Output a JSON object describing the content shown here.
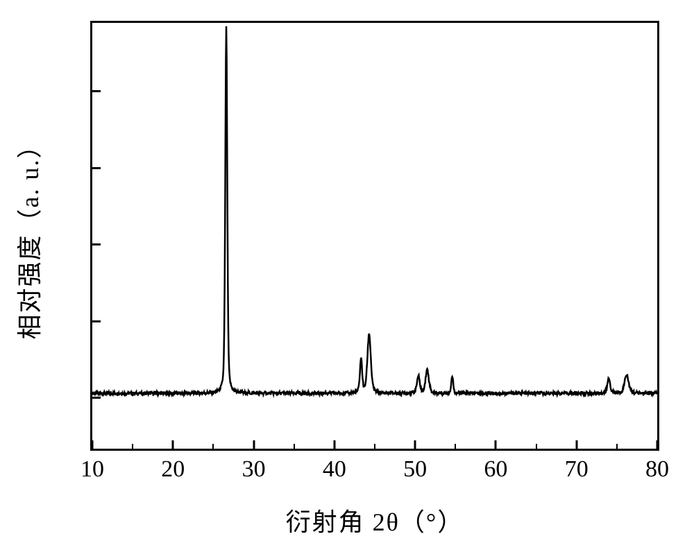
{
  "chart": {
    "type": "line",
    "xlabel": "衍射角 2θ（°）",
    "ylabel": "相对强度（a. u.）",
    "xlim": [
      10,
      80
    ],
    "ylim": [
      0,
      100
    ],
    "xtick_major": [
      10,
      20,
      30,
      40,
      50,
      60,
      70,
      80
    ],
    "xtick_minor": [
      15,
      25,
      35,
      45,
      55,
      65,
      75
    ],
    "ytick_positions": [
      12,
      30,
      48,
      66,
      84
    ],
    "label_fontsize": 36,
    "tick_fontsize": 34,
    "frame_color": "#000000",
    "frame_width": 3,
    "background_color": "#ffffff",
    "line_color": "#000000",
    "line_width": 2.5,
    "baseline": 13,
    "noise_amplitude": 0.8,
    "peaks": [
      {
        "x": 26.6,
        "height": 99,
        "width": 0.35
      },
      {
        "x": 43.3,
        "height": 21,
        "width": 0.4
      },
      {
        "x": 44.3,
        "height": 27,
        "width": 0.6
      },
      {
        "x": 50.4,
        "height": 17,
        "width": 0.5
      },
      {
        "x": 51.5,
        "height": 18.5,
        "width": 0.6
      },
      {
        "x": 54.6,
        "height": 17,
        "width": 0.35
      },
      {
        "x": 74.0,
        "height": 16.5,
        "width": 0.5
      },
      {
        "x": 76.2,
        "height": 17.5,
        "width": 0.7
      }
    ]
  }
}
